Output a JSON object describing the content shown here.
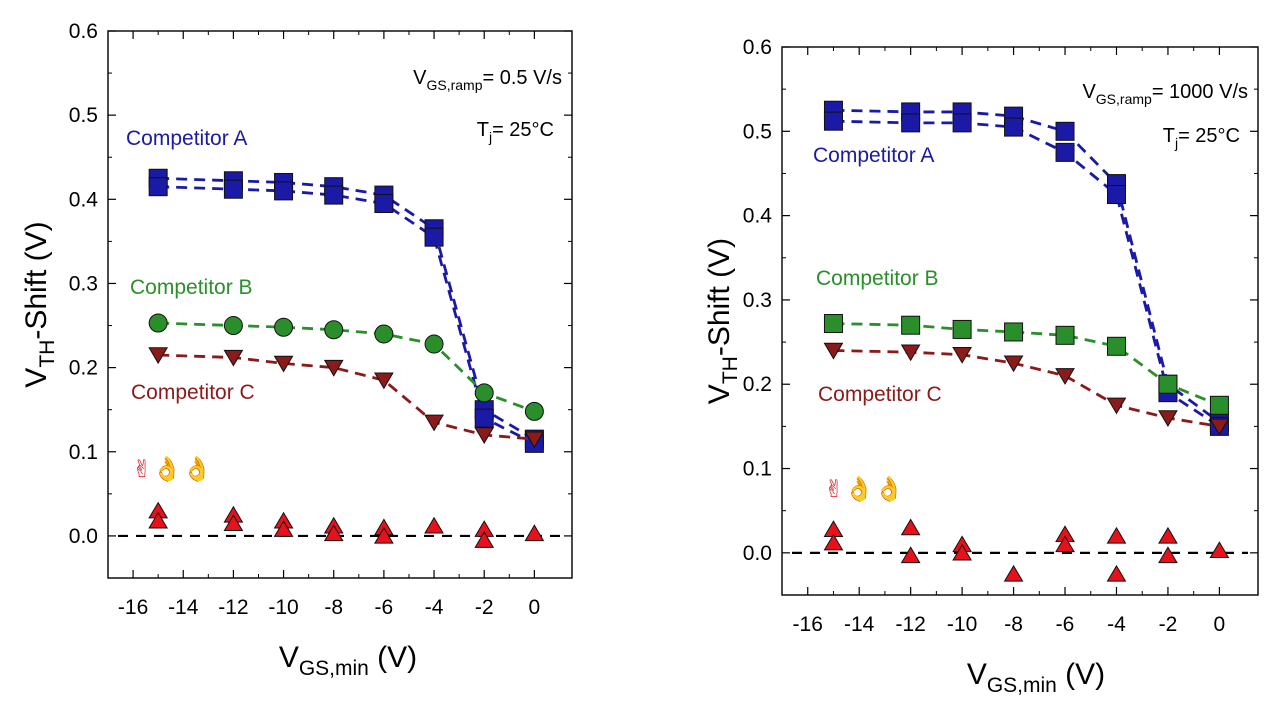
{
  "glyphs": "✌👌👌",
  "chart_data": [
    {
      "type": "scatter",
      "xlabel": {
        "main": "V",
        "sub": "GS,min",
        "unit": " (V)"
      },
      "ylabel": {
        "main": "V",
        "sub": "TH",
        "unit": "-Shift (V)"
      },
      "xlim": [
        -17,
        1.5
      ],
      "ylim": [
        -0.05,
        0.6
      ],
      "xticks": [
        -16,
        -14,
        -12,
        -10,
        -8,
        -6,
        -4,
        -2,
        0
      ],
      "yticks": [
        0.0,
        0.1,
        0.2,
        0.3,
        0.4,
        0.5,
        0.6
      ],
      "xtick_labels": [
        "-16",
        "-14",
        "-12",
        "-10",
        "-8",
        "-6",
        "-4",
        "-2",
        "0"
      ],
      "ytick_labels": [
        "0.0",
        "0.1",
        "0.2",
        "0.3",
        "0.4",
        "0.5",
        "0.6"
      ],
      "annotations": {
        "ramp": {
          "main": "V",
          "sub": "GS,ramp",
          "rest": "= 0.5 V/s"
        },
        "temp": {
          "main": "T",
          "sub": "j",
          "rest": "= 25°C"
        }
      },
      "series": [
        {
          "name": "Competitor A",
          "color": "#1a1aa6",
          "marker": "square",
          "lines": [
            {
              "x": [
                -15,
                -12,
                -10,
                -8,
                -6,
                -4,
                -2,
                0
              ],
              "y": [
                0.425,
                0.422,
                0.42,
                0.415,
                0.405,
                0.365,
                0.15,
                0.115
              ]
            },
            {
              "x": [
                -15,
                -12,
                -10,
                -8,
                -6,
                -4,
                -2,
                0
              ],
              "y": [
                0.415,
                0.412,
                0.41,
                0.405,
                0.395,
                0.355,
                0.14,
                0.11
              ]
            }
          ]
        },
        {
          "name": "Competitor B",
          "color": "#2a8f2a",
          "marker": "circle",
          "lines": [
            {
              "x": [
                -15,
                -12,
                -10,
                -8,
                -6,
                -4,
                -2,
                0
              ],
              "y": [
                0.253,
                0.25,
                0.248,
                0.245,
                0.24,
                0.228,
                0.17,
                0.148
              ]
            }
          ]
        },
        {
          "name": "Competitor C",
          "color": "#8b1a1a",
          "marker": "triangle-down",
          "lines": [
            {
              "x": [
                -15,
                -12,
                -10,
                -8,
                -6,
                -4,
                -2,
                0
              ],
              "y": [
                0.215,
                0.212,
                0.205,
                0.2,
                0.185,
                0.135,
                0.12,
                0.115
              ]
            }
          ]
        },
        {
          "name": "",
          "color": "#e8101a",
          "marker": "triangle-up",
          "baseline": 0.0,
          "points": {
            "x": [
              -15,
              -15,
              -12,
              -12,
              -10,
              -10,
              -8,
              -8,
              -6,
              -6,
              -4,
              -2,
              -2,
              0
            ],
            "y": [
              0.03,
              0.018,
              0.025,
              0.015,
              0.018,
              0.008,
              0.012,
              0.003,
              0.01,
              0.0,
              0.012,
              0.008,
              -0.005,
              0.003
            ]
          }
        }
      ]
    },
    {
      "type": "scatter",
      "xlabel": {
        "main": "V",
        "sub": "GS,min",
        "unit": " (V)"
      },
      "ylabel": {
        "main": "V",
        "sub": "TH",
        "unit": "-Shift (V)"
      },
      "xlim": [
        -17,
        1.5
      ],
      "ylim": [
        -0.05,
        0.6
      ],
      "xticks": [
        -16,
        -14,
        -12,
        -10,
        -8,
        -6,
        -4,
        -2,
        0
      ],
      "yticks": [
        0.0,
        0.1,
        0.2,
        0.3,
        0.4,
        0.5,
        0.6
      ],
      "xtick_labels": [
        "-16",
        "-14",
        "-12",
        "-10",
        "-8",
        "-6",
        "-4",
        "-2",
        "0"
      ],
      "ytick_labels": [
        "0.0",
        "0.1",
        "0.2",
        "0.3",
        "0.4",
        "0.5",
        "0.6"
      ],
      "annotations": {
        "ramp": {
          "main": "V",
          "sub": "GS,ramp",
          "rest": "= 1000 V/s"
        },
        "temp": {
          "main": "T",
          "sub": "j",
          "rest": "= 25°C"
        }
      },
      "series": [
        {
          "name": "Competitor A",
          "color": "#1a1aa6",
          "marker": "square",
          "lines": [
            {
              "x": [
                -15,
                -12,
                -10,
                -8,
                -6,
                -4,
                -2,
                0
              ],
              "y": [
                0.525,
                0.523,
                0.523,
                0.518,
                0.5,
                0.438,
                0.2,
                0.155
              ]
            },
            {
              "x": [
                -15,
                -12,
                -10,
                -8,
                -6,
                -4,
                -2,
                0
              ],
              "y": [
                0.512,
                0.51,
                0.51,
                0.505,
                0.475,
                0.425,
                0.19,
                0.15
              ]
            }
          ]
        },
        {
          "name": "Competitor B",
          "color": "#2a8f2a",
          "marker": "square",
          "lines": [
            {
              "x": [
                -15,
                -12,
                -10,
                -8,
                -6,
                -4,
                -2,
                0
              ],
              "y": [
                0.272,
                0.27,
                0.265,
                0.262,
                0.258,
                0.245,
                0.2,
                0.175
              ]
            }
          ]
        },
        {
          "name": "Competitor C",
          "color": "#8b1a1a",
          "marker": "triangle-down",
          "lines": [
            {
              "x": [
                -15,
                -12,
                -10,
                -8,
                -6,
                -4,
                -2,
                0
              ],
              "y": [
                0.24,
                0.238,
                0.235,
                0.225,
                0.21,
                0.175,
                0.16,
                0.15
              ]
            }
          ]
        },
        {
          "name": "",
          "color": "#e8101a",
          "marker": "triangle-up",
          "baseline": 0.0,
          "points": {
            "x": [
              -15,
              -15,
              -12,
              -12,
              -10,
              -10,
              -8,
              -6,
              -6,
              -4,
              -4,
              -2,
              -2,
              0
            ],
            "y": [
              0.028,
              0.012,
              0.03,
              -0.003,
              0.01,
              0.0,
              -0.025,
              0.022,
              0.01,
              0.02,
              -0.025,
              0.02,
              -0.003,
              0.003
            ]
          }
        }
      ]
    }
  ]
}
